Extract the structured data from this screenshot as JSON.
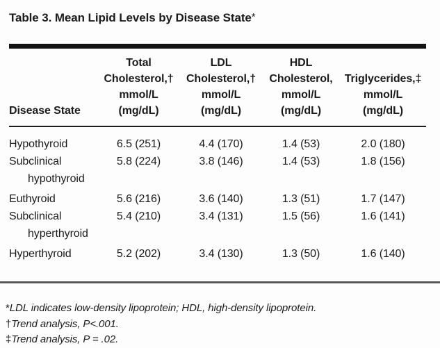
{
  "title": {
    "text": "Table 3. Mean Lipid Levels by Disease State",
    "marker": "*"
  },
  "table": {
    "header": {
      "row_label": "Disease State",
      "cols": [
        {
          "lines": [
            "Total",
            "Cholesterol,†",
            "mmol/L",
            "(mg/dL)"
          ]
        },
        {
          "lines": [
            "LDL",
            "Cholesterol,†",
            "mmol/L",
            "(mg/dL)"
          ]
        },
        {
          "lines": [
            "HDL",
            "Cholesterol,",
            "mmol/L",
            "(mg/dL)"
          ]
        },
        {
          "lines": [
            "",
            "Triglycerides,‡",
            "mmol/L",
            "(mg/dL)"
          ]
        }
      ]
    },
    "rows": [
      {
        "label": "Hypothyroid",
        "label_cont": "",
        "values": [
          "6.5 (251)",
          "4.4 (170)",
          "1.4 (53)",
          "2.0 (180)"
        ]
      },
      {
        "label": "Subclinical",
        "label_cont": "hypothyroid",
        "values": [
          "5.8 (224)",
          "3.8 (146)",
          "1.4 (53)",
          "1.8 (156)"
        ]
      },
      {
        "label": "Euthyroid",
        "label_cont": "",
        "values": [
          "5.6 (216)",
          "3.6 (140)",
          "1.3 (51)",
          "1.7 (147)"
        ]
      },
      {
        "label": "Subclinical",
        "label_cont": "hyperthyroid",
        "values": [
          "5.4 (210)",
          "3.4 (131)",
          "1.5 (56)",
          "1.6 (141)"
        ]
      },
      {
        "label": "Hyperthyroid",
        "label_cont": "",
        "values": [
          "5.2 (202)",
          "3.4 (130)",
          "1.3 (50)",
          "1.6 (140)"
        ]
      }
    ]
  },
  "footnotes": [
    {
      "marker": "*",
      "text": "LDL indicates low-density lipoprotein; HDL, high-density lipoprotein."
    },
    {
      "marker": "†",
      "text": "Trend analysis, P<.001."
    },
    {
      "marker": "‡",
      "text": "Trend analysis, P = .02."
    }
  ],
  "colors": {
    "background": "#fdfdfd",
    "text": "#1b1b1b",
    "top_rule": "#121212",
    "header_rule": "#1c1c1c",
    "separator": "#595959"
  }
}
